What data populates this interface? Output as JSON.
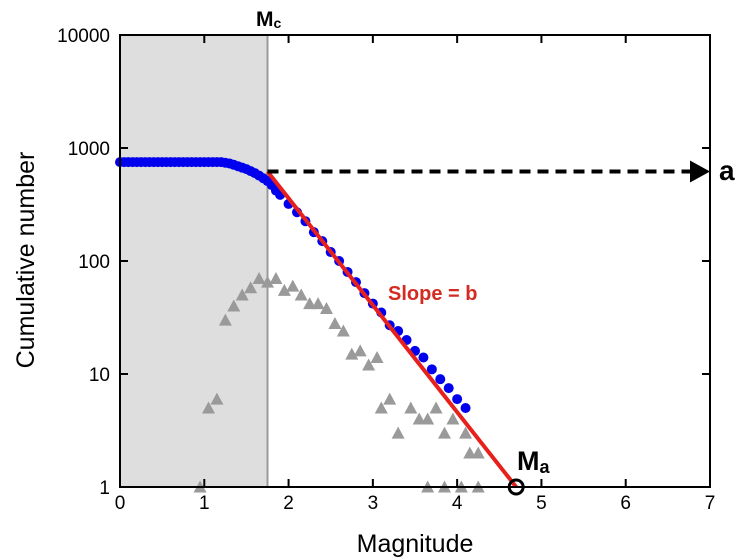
{
  "chart_data": {
    "type": "scatter",
    "title": "",
    "xlabel": "Magnitude",
    "ylabel": "Cumulative number",
    "xlim": [
      0,
      7
    ],
    "ylim": [
      1,
      10000
    ],
    "yscale": "log",
    "x_ticks": [
      "0",
      "1",
      "2",
      "3",
      "4",
      "5",
      "6",
      "7"
    ],
    "y_ticks": [
      {
        "value": 1,
        "label": "1"
      },
      {
        "value": 10,
        "label": "10"
      },
      {
        "value": 100,
        "label": "100"
      },
      {
        "value": 1000,
        "label": "1000"
      },
      {
        "value": 10000,
        "label": "10000"
      }
    ],
    "grid": false,
    "mc": 1.75,
    "mc_label": {
      "main": "M",
      "sub": "c"
    },
    "ma_label": {
      "main": "M",
      "sub": "a"
    },
    "a_label": "a",
    "slope_label": "Slope = b",
    "fit_line": {
      "x": [
        1.75,
        4.7
      ],
      "y": [
        620,
        1
      ]
    },
    "a_arrow": {
      "y": 620,
      "x_start": 1.75,
      "x_end": 7.0
    },
    "ma_point": {
      "x": 4.7,
      "y": 1
    },
    "series": [
      {
        "marker": "circle",
        "color": "#0000ee",
        "points": [
          [
            0.0,
            750
          ],
          [
            0.05,
            750
          ],
          [
            0.1,
            750
          ],
          [
            0.15,
            750
          ],
          [
            0.2,
            750
          ],
          [
            0.25,
            750
          ],
          [
            0.3,
            750
          ],
          [
            0.35,
            750
          ],
          [
            0.4,
            750
          ],
          [
            0.45,
            750
          ],
          [
            0.5,
            750
          ],
          [
            0.55,
            750
          ],
          [
            0.6,
            750
          ],
          [
            0.65,
            750
          ],
          [
            0.7,
            750
          ],
          [
            0.75,
            750
          ],
          [
            0.8,
            750
          ],
          [
            0.85,
            750
          ],
          [
            0.9,
            750
          ],
          [
            0.95,
            750
          ],
          [
            1.0,
            750
          ],
          [
            1.05,
            750
          ],
          [
            1.1,
            750
          ],
          [
            1.15,
            750
          ],
          [
            1.2,
            750
          ],
          [
            1.25,
            740
          ],
          [
            1.3,
            730
          ],
          [
            1.35,
            710
          ],
          [
            1.4,
            690
          ],
          [
            1.45,
            670
          ],
          [
            1.5,
            650
          ],
          [
            1.55,
            625
          ],
          [
            1.6,
            600
          ],
          [
            1.65,
            570
          ],
          [
            1.7,
            540
          ],
          [
            1.75,
            510
          ],
          [
            1.8,
            470
          ],
          [
            1.85,
            420
          ],
          [
            1.9,
            385
          ],
          [
            2.0,
            320
          ],
          [
            2.1,
            270
          ],
          [
            2.2,
            225
          ],
          [
            2.3,
            180
          ],
          [
            2.4,
            150
          ],
          [
            2.5,
            120
          ],
          [
            2.6,
            100
          ],
          [
            2.7,
            80
          ],
          [
            2.8,
            65
          ],
          [
            2.9,
            52
          ],
          [
            3.0,
            42
          ],
          [
            3.1,
            35
          ],
          [
            3.2,
            27
          ],
          [
            3.3,
            24
          ],
          [
            3.4,
            20
          ],
          [
            3.5,
            16
          ],
          [
            3.6,
            14
          ],
          [
            3.7,
            11
          ],
          [
            3.8,
            9
          ],
          [
            3.9,
            7.5
          ],
          [
            4.0,
            6
          ],
          [
            4.1,
            5
          ]
        ]
      },
      {
        "marker": "triangle",
        "color": "#9a9a9a",
        "points": [
          [
            0.95,
            1
          ],
          [
            1.05,
            5
          ],
          [
            1.15,
            6
          ],
          [
            1.25,
            30
          ],
          [
            1.35,
            40
          ],
          [
            1.45,
            50
          ],
          [
            1.55,
            58
          ],
          [
            1.65,
            70
          ],
          [
            1.75,
            65
          ],
          [
            1.85,
            70
          ],
          [
            1.95,
            55
          ],
          [
            2.05,
            60
          ],
          [
            2.15,
            50
          ],
          [
            2.25,
            42
          ],
          [
            2.35,
            42
          ],
          [
            2.45,
            38
          ],
          [
            2.55,
            28
          ],
          [
            2.65,
            24
          ],
          [
            2.75,
            15
          ],
          [
            2.85,
            16
          ],
          [
            2.95,
            12
          ],
          [
            3.05,
            14
          ],
          [
            3.1,
            5
          ],
          [
            3.2,
            6
          ],
          [
            3.3,
            3
          ],
          [
            3.45,
            5
          ],
          [
            3.55,
            4
          ],
          [
            3.65,
            4
          ],
          [
            3.75,
            5
          ],
          [
            3.85,
            3
          ],
          [
            3.95,
            4
          ],
          [
            4.1,
            3
          ],
          [
            4.15,
            2
          ],
          [
            4.25,
            2
          ],
          [
            3.65,
            1
          ],
          [
            3.85,
            1
          ],
          [
            4.05,
            1
          ],
          [
            4.25,
            1
          ]
        ]
      }
    ]
  }
}
